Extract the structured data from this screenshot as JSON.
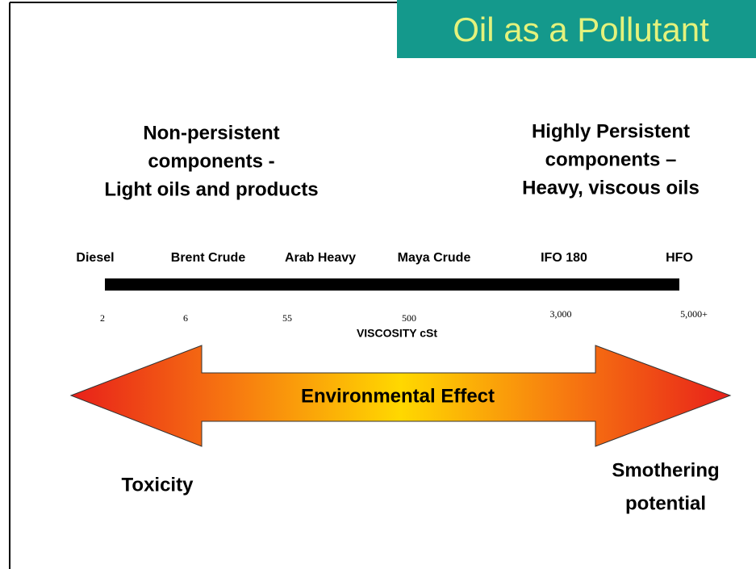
{
  "title": "Oil as a Pollutant",
  "left_heading": [
    "Non-persistent",
    "components -",
    "Light oils and products"
  ],
  "right_heading": [
    "Highly Persistent",
    "components –",
    "Heavy, viscous oils"
  ],
  "oils": [
    {
      "name": "Diesel",
      "viscosity": "2"
    },
    {
      "name": "Brent Crude",
      "viscosity": "6"
    },
    {
      "name": "Arab Heavy",
      "viscosity": "55"
    },
    {
      "name": "Maya Crude",
      "viscosity": "500"
    },
    {
      "name": "IFO 180",
      "viscosity": "3,000"
    },
    {
      "name": "HFO",
      "viscosity": "5,000+"
    }
  ],
  "axis_label": "VISCOSITY cSt",
  "arrow_label": "Environmental Effect",
  "left_effect": [
    "Toxicity"
  ],
  "right_effect": [
    "Smothering",
    "potential"
  ]
}
